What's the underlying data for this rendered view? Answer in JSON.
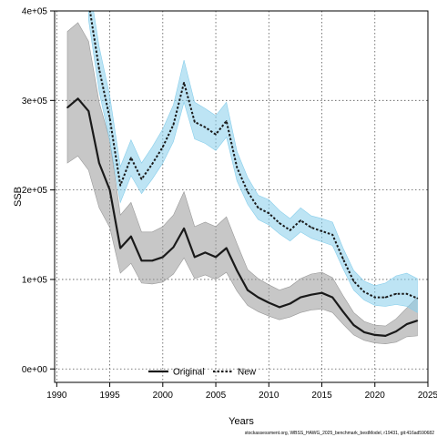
{
  "chart_data": {
    "type": "line",
    "xlabel": "Years",
    "ylabel": "SSB",
    "xlim": [
      1989.8,
      2025
    ],
    "ylim": [
      -15000,
      400000
    ],
    "x_ticks": [
      1990,
      1995,
      2000,
      2005,
      2010,
      2015,
      2020,
      2025
    ],
    "y_ticks": [
      0,
      100000,
      200000,
      300000,
      400000
    ],
    "y_tick_labels": [
      "0e+00",
      "1e+05",
      "2e+05",
      "3e+05",
      "4e+05"
    ],
    "grid": true,
    "legend_position": "bottom-center",
    "footer": "stockassessment.org, WBSS_HAWG_2025_benchmark_bestModel, r19431, git:416ad590682",
    "x": [
      1991,
      1992,
      1993,
      1994,
      1995,
      1996,
      1997,
      1998,
      1999,
      2000,
      2001,
      2002,
      2003,
      2004,
      2005,
      2006,
      2007,
      2008,
      2009,
      2010,
      2011,
      2012,
      2013,
      2014,
      2015,
      2016,
      2017,
      2018,
      2019,
      2020,
      2021,
      2022,
      2023,
      2024
    ],
    "series": [
      {
        "name": "Original",
        "color": "#1a1a1a",
        "band_color": "#999999",
        "line_style": "solid",
        "values": [
          292000,
          302000,
          288000,
          230000,
          200000,
          135000,
          148000,
          121000,
          121000,
          125000,
          136000,
          157000,
          125000,
          130000,
          125000,
          135000,
          110000,
          88000,
          80000,
          74000,
          69000,
          73000,
          80000,
          83000,
          85000,
          80000,
          64000,
          49000,
          41000,
          38000,
          37000,
          42000,
          50000,
          54000
        ],
        "lower": [
          230000,
          238000,
          222000,
          180000,
          158000,
          107000,
          118000,
          96000,
          95000,
          97000,
          106000,
          124000,
          101000,
          105000,
          100000,
          108000,
          87000,
          71000,
          64000,
          59000,
          55000,
          58000,
          63000,
          66000,
          67000,
          63000,
          50000,
          38000,
          32000,
          29000,
          28000,
          30000,
          36000,
          37000
        ],
        "upper": [
          377000,
          387000,
          366000,
          298000,
          256000,
          172000,
          186000,
          153000,
          153000,
          159000,
          172000,
          198000,
          159000,
          164000,
          159000,
          170000,
          140000,
          111000,
          101000,
          94000,
          88000,
          92000,
          101000,
          106000,
          108000,
          102000,
          82000,
          63000,
          53000,
          49000,
          48000,
          56000,
          68000,
          80000
        ]
      },
      {
        "name": "New",
        "color": "#1a1a1a",
        "band_color": "#87ceeb",
        "line_style": "dotted",
        "values": [
          null,
          null,
          410000,
          335000,
          280000,
          205000,
          236000,
          212000,
          229000,
          248000,
          273000,
          320000,
          276000,
          270000,
          262000,
          277000,
          225000,
          198000,
          180000,
          174000,
          163000,
          155000,
          166000,
          158000,
          154000,
          150000,
          123000,
          98000,
          86000,
          80000,
          80000,
          84000,
          84000,
          79000
        ],
        "lower": [
          null,
          null,
          390000,
          310000,
          255000,
          186000,
          216000,
          196000,
          212000,
          230000,
          254000,
          298000,
          257000,
          252000,
          244000,
          259000,
          210000,
          184000,
          167000,
          161000,
          151000,
          143000,
          153000,
          146000,
          142000,
          138000,
          112000,
          88000,
          77000,
          71000,
          70000,
          72000,
          70000,
          63000
        ],
        "upper": [
          null,
          null,
          435000,
          360000,
          305000,
          226000,
          256000,
          230000,
          248000,
          268000,
          295000,
          345000,
          298000,
          291000,
          283000,
          298000,
          243000,
          214000,
          194000,
          189000,
          177000,
          168000,
          180000,
          171000,
          168000,
          164000,
          135000,
          110000,
          98000,
          93000,
          96000,
          104000,
          107000,
          101000
        ]
      }
    ]
  }
}
